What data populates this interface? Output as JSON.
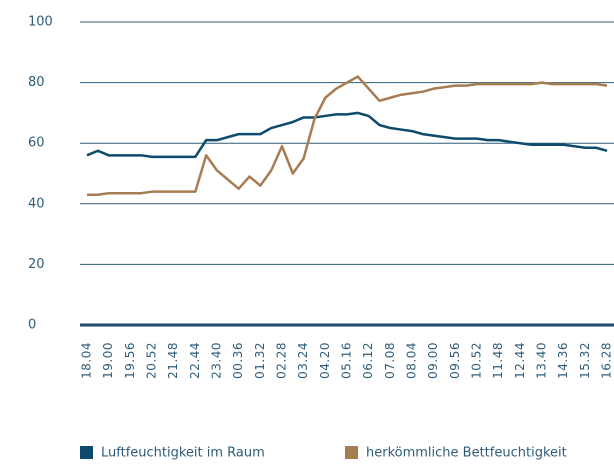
{
  "chart_data": {
    "type": "line",
    "categories": [
      "18.04",
      null,
      "19.00",
      null,
      "19.56",
      null,
      "20.52",
      null,
      "21.48",
      null,
      "22.44",
      null,
      "23.40",
      null,
      "00.36",
      null,
      "01.32",
      null,
      "02.28",
      null,
      "03.24",
      null,
      "04.20",
      null,
      "05.16",
      null,
      "06.12",
      null,
      "07.08",
      null,
      "08.04",
      null,
      "09.00",
      null,
      "09.56",
      null,
      "10.52",
      null,
      "11.48",
      null,
      "12.44",
      null,
      "13.40",
      null,
      "14.36",
      null,
      "15.32",
      null,
      "16.28"
    ],
    "series": [
      {
        "name": "Luftfeuchtigkeit im Raum",
        "color": "#0d4a6b",
        "values": [
          56,
          57.5,
          56,
          56,
          56,
          56,
          55.5,
          55.5,
          55.5,
          55.5,
          55.5,
          61,
          61,
          62,
          63,
          63,
          63,
          65,
          66,
          67,
          68.5,
          68.5,
          69,
          69.5,
          69.5,
          70,
          69,
          66,
          65,
          64.5,
          64,
          63,
          62.5,
          62,
          61.5,
          61.5,
          61.5,
          61,
          61,
          60.5,
          60,
          59.5,
          59.5,
          59.5,
          59.5,
          59,
          58.5,
          58.5,
          57.5
        ]
      },
      {
        "name": "herkömmliche Bettfeuchtigkeit",
        "color": "#a67c52",
        "values": [
          43,
          43,
          43.5,
          43.5,
          43.5,
          43.5,
          44,
          44,
          44,
          44,
          44,
          56,
          51,
          48,
          45,
          49,
          46,
          51,
          59,
          50,
          55,
          68,
          75,
          78,
          80,
          82,
          78,
          74,
          75,
          76,
          76.5,
          77,
          78,
          78.5,
          79,
          79,
          79.5,
          79.5,
          79.5,
          79.5,
          79.5,
          79.5,
          80,
          79.5,
          79.5,
          79.5,
          79.5,
          79.5,
          79
        ]
      }
    ],
    "ylim": [
      0,
      100
    ],
    "yticks": [
      0,
      20,
      40,
      60,
      80,
      100
    ],
    "grid": true
  }
}
